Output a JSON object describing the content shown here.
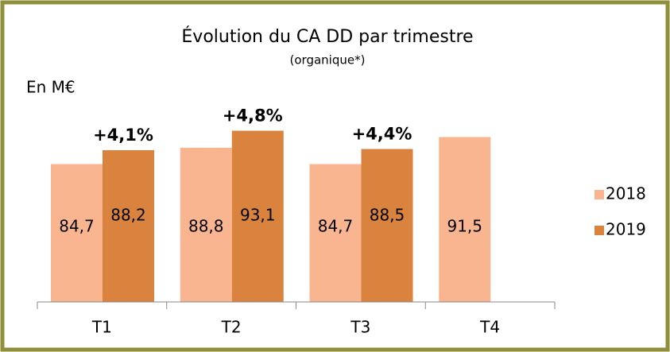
{
  "chart_data": {
    "type": "bar",
    "title": "Évolution du CA DD par trimestre",
    "subtitle": "(organique*)",
    "unit_label": "En M€",
    "categories": [
      "T1",
      "T2",
      "T3",
      "T4"
    ],
    "series": [
      {
        "name": "2018",
        "color": "#f8b58f",
        "values": [
          84.7,
          88.8,
          84.7,
          91.5
        ],
        "value_labels": [
          "84,7",
          "88,8",
          "84,7",
          "91,5"
        ]
      },
      {
        "name": "2019",
        "color": "#d9833f",
        "values": [
          88.2,
          93.1,
          88.5,
          null
        ],
        "value_labels": [
          "88,2",
          "93,1",
          "88,5",
          null
        ]
      }
    ],
    "growth_labels": [
      "+4,1%",
      "+4,8%",
      "+4,4%",
      null
    ],
    "ylim": [
      50,
      100
    ],
    "legend": "right"
  }
}
